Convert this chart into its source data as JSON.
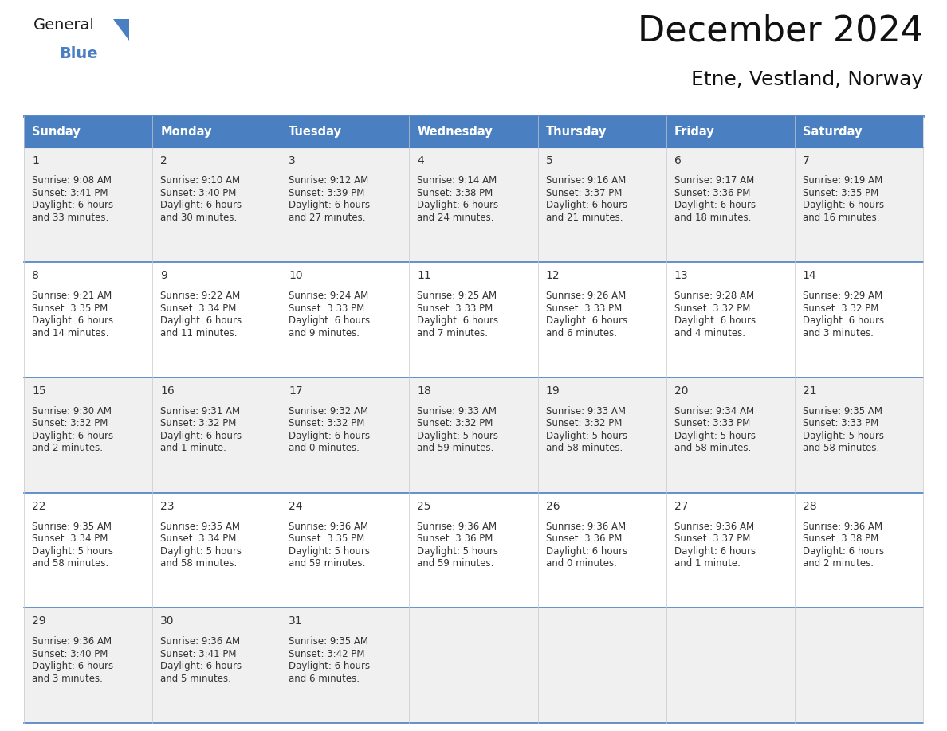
{
  "title": "December 2024",
  "subtitle": "Etne, Vestland, Norway",
  "header_color": "#4a7fc1",
  "header_text_color": "#FFFFFF",
  "day_names": [
    "Sunday",
    "Monday",
    "Tuesday",
    "Wednesday",
    "Thursday",
    "Friday",
    "Saturday"
  ],
  "background_color": "#FFFFFF",
  "cell_bg_light": "#f0f0f0",
  "cell_bg_white": "#FFFFFF",
  "border_color": "#4a7fc1",
  "text_color": "#333333",
  "days": [
    {
      "day": 1,
      "col": 0,
      "row": 0,
      "sunrise": "9:08 AM",
      "sunset": "3:41 PM",
      "daylight": "6 hours and 33 minutes."
    },
    {
      "day": 2,
      "col": 1,
      "row": 0,
      "sunrise": "9:10 AM",
      "sunset": "3:40 PM",
      "daylight": "6 hours and 30 minutes."
    },
    {
      "day": 3,
      "col": 2,
      "row": 0,
      "sunrise": "9:12 AM",
      "sunset": "3:39 PM",
      "daylight": "6 hours and 27 minutes."
    },
    {
      "day": 4,
      "col": 3,
      "row": 0,
      "sunrise": "9:14 AM",
      "sunset": "3:38 PM",
      "daylight": "6 hours and 24 minutes."
    },
    {
      "day": 5,
      "col": 4,
      "row": 0,
      "sunrise": "9:16 AM",
      "sunset": "3:37 PM",
      "daylight": "6 hours and 21 minutes."
    },
    {
      "day": 6,
      "col": 5,
      "row": 0,
      "sunrise": "9:17 AM",
      "sunset": "3:36 PM",
      "daylight": "6 hours and 18 minutes."
    },
    {
      "day": 7,
      "col": 6,
      "row": 0,
      "sunrise": "9:19 AM",
      "sunset": "3:35 PM",
      "daylight": "6 hours and 16 minutes."
    },
    {
      "day": 8,
      "col": 0,
      "row": 1,
      "sunrise": "9:21 AM",
      "sunset": "3:35 PM",
      "daylight": "6 hours and 14 minutes."
    },
    {
      "day": 9,
      "col": 1,
      "row": 1,
      "sunrise": "9:22 AM",
      "sunset": "3:34 PM",
      "daylight": "6 hours and 11 minutes."
    },
    {
      "day": 10,
      "col": 2,
      "row": 1,
      "sunrise": "9:24 AM",
      "sunset": "3:33 PM",
      "daylight": "6 hours and 9 minutes."
    },
    {
      "day": 11,
      "col": 3,
      "row": 1,
      "sunrise": "9:25 AM",
      "sunset": "3:33 PM",
      "daylight": "6 hours and 7 minutes."
    },
    {
      "day": 12,
      "col": 4,
      "row": 1,
      "sunrise": "9:26 AM",
      "sunset": "3:33 PM",
      "daylight": "6 hours and 6 minutes."
    },
    {
      "day": 13,
      "col": 5,
      "row": 1,
      "sunrise": "9:28 AM",
      "sunset": "3:32 PM",
      "daylight": "6 hours and 4 minutes."
    },
    {
      "day": 14,
      "col": 6,
      "row": 1,
      "sunrise": "9:29 AM",
      "sunset": "3:32 PM",
      "daylight": "6 hours and 3 minutes."
    },
    {
      "day": 15,
      "col": 0,
      "row": 2,
      "sunrise": "9:30 AM",
      "sunset": "3:32 PM",
      "daylight": "6 hours and 2 minutes."
    },
    {
      "day": 16,
      "col": 1,
      "row": 2,
      "sunrise": "9:31 AM",
      "sunset": "3:32 PM",
      "daylight": "6 hours and 1 minute."
    },
    {
      "day": 17,
      "col": 2,
      "row": 2,
      "sunrise": "9:32 AM",
      "sunset": "3:32 PM",
      "daylight": "6 hours and 0 minutes."
    },
    {
      "day": 18,
      "col": 3,
      "row": 2,
      "sunrise": "9:33 AM",
      "sunset": "3:32 PM",
      "daylight": "5 hours and 59 minutes."
    },
    {
      "day": 19,
      "col": 4,
      "row": 2,
      "sunrise": "9:33 AM",
      "sunset": "3:32 PM",
      "daylight": "5 hours and 58 minutes."
    },
    {
      "day": 20,
      "col": 5,
      "row": 2,
      "sunrise": "9:34 AM",
      "sunset": "3:33 PM",
      "daylight": "5 hours and 58 minutes."
    },
    {
      "day": 21,
      "col": 6,
      "row": 2,
      "sunrise": "9:35 AM",
      "sunset": "3:33 PM",
      "daylight": "5 hours and 58 minutes."
    },
    {
      "day": 22,
      "col": 0,
      "row": 3,
      "sunrise": "9:35 AM",
      "sunset": "3:34 PM",
      "daylight": "5 hours and 58 minutes."
    },
    {
      "day": 23,
      "col": 1,
      "row": 3,
      "sunrise": "9:35 AM",
      "sunset": "3:34 PM",
      "daylight": "5 hours and 58 minutes."
    },
    {
      "day": 24,
      "col": 2,
      "row": 3,
      "sunrise": "9:36 AM",
      "sunset": "3:35 PM",
      "daylight": "5 hours and 59 minutes."
    },
    {
      "day": 25,
      "col": 3,
      "row": 3,
      "sunrise": "9:36 AM",
      "sunset": "3:36 PM",
      "daylight": "5 hours and 59 minutes."
    },
    {
      "day": 26,
      "col": 4,
      "row": 3,
      "sunrise": "9:36 AM",
      "sunset": "3:36 PM",
      "daylight": "6 hours and 0 minutes."
    },
    {
      "day": 27,
      "col": 5,
      "row": 3,
      "sunrise": "9:36 AM",
      "sunset": "3:37 PM",
      "daylight": "6 hours and 1 minute."
    },
    {
      "day": 28,
      "col": 6,
      "row": 3,
      "sunrise": "9:36 AM",
      "sunset": "3:38 PM",
      "daylight": "6 hours and 2 minutes."
    },
    {
      "day": 29,
      "col": 0,
      "row": 4,
      "sunrise": "9:36 AM",
      "sunset": "3:40 PM",
      "daylight": "6 hours and 3 minutes."
    },
    {
      "day": 30,
      "col": 1,
      "row": 4,
      "sunrise": "9:36 AM",
      "sunset": "3:41 PM",
      "daylight": "6 hours and 5 minutes."
    },
    {
      "day": 31,
      "col": 2,
      "row": 4,
      "sunrise": "9:35 AM",
      "sunset": "3:42 PM",
      "daylight": "6 hours and 6 minutes."
    }
  ],
  "num_rows": 5,
  "num_cols": 7,
  "logo_text_general": "General",
  "logo_text_blue": "Blue",
  "logo_triangle_color": "#4a7fc1",
  "title_fontsize": 32,
  "subtitle_fontsize": 18,
  "dayname_fontsize": 10.5,
  "daynum_fontsize": 10,
  "cell_text_fontsize": 8.5
}
